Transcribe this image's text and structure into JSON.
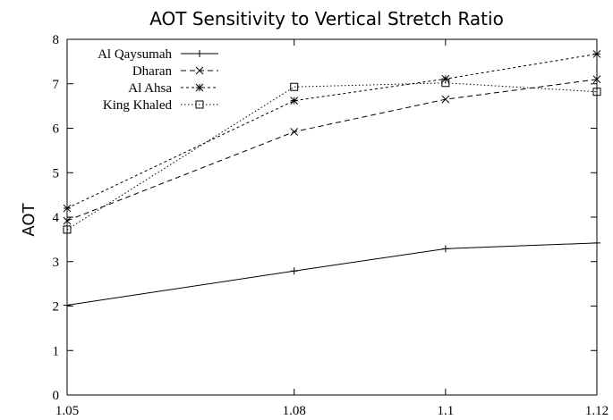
{
  "chart_data": {
    "type": "line",
    "title": "AOT Sensitivity to Vertical Stretch Ratio",
    "xlabel": "",
    "ylabel": "AOT",
    "x": [
      1.05,
      1.08,
      1.1,
      1.12
    ],
    "x_tick_labels": [
      "1.05",
      "1.08",
      "1.1",
      "1.12"
    ],
    "xlim": [
      1.05,
      1.12
    ],
    "ylim": [
      0,
      8
    ],
    "y_ticks": [
      0,
      1,
      2,
      3,
      4,
      5,
      6,
      7,
      8
    ],
    "grid": false,
    "legend_position": "top-left",
    "series": [
      {
        "name": "Al Qaysumah",
        "values": [
          2.02,
          2.79,
          3.29,
          3.42
        ],
        "marker": "plus",
        "dash": "solid",
        "color": "#000000"
      },
      {
        "name": "Dharan",
        "values": [
          3.92,
          5.92,
          6.65,
          7.1
        ],
        "marker": "cross",
        "dash": "dashed",
        "color": "#000000"
      },
      {
        "name": "Al Ahsa",
        "values": [
          4.2,
          6.62,
          7.11,
          7.67
        ],
        "marker": "star",
        "dash": "dotted",
        "color": "#000000"
      },
      {
        "name": "King Khaled",
        "values": [
          3.72,
          6.93,
          7.02,
          6.82
        ],
        "marker": "square",
        "dash": "fine-dotted",
        "color": "#000000"
      }
    ]
  }
}
